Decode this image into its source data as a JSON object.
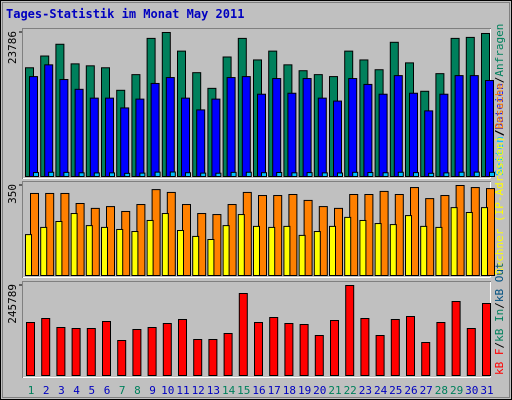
{
  "chart_data": [
    {
      "type": "bar",
      "title": "Tages-Statistik im Monat May 2011",
      "legend_separator": "/",
      "ylim": [
        0,
        23786
      ],
      "yticks": [
        23786
      ],
      "series": [
        {
          "name": "Anfragen",
          "color": "#00805c",
          "values": [
            17960,
            19901,
            21843,
            18607,
            18283,
            17960,
            14238,
            16827,
            22814,
            23786,
            20710,
            17151,
            14562,
            19740,
            22814,
            19254,
            20710,
            18445,
            17474,
            16827,
            16504,
            20710,
            19254,
            17636,
            22167,
            18769,
            14077,
            16989,
            22814,
            22976,
            23624
          ]
        },
        {
          "name": "Dateien",
          "color": "#0000ff",
          "values": [
            16504,
            18445,
            16018,
            14400,
            12944,
            12944,
            11326,
            12782,
            15371,
            16342,
            12944,
            11002,
            12782,
            16342,
            16504,
            13591,
            16180,
            13753,
            16180,
            12944,
            12459,
            16180,
            15209,
            13591,
            16665,
            13753,
            10841,
            13591,
            16665,
            16665,
            15856
          ]
        },
        {
          "name": "Seiten",
          "color": "#00c0ff",
          "values": [
            650,
            700,
            680,
            610,
            590,
            600,
            520,
            560,
            720,
            740,
            620,
            560,
            540,
            680,
            700,
            630,
            660,
            610,
            640,
            600,
            580,
            690,
            650,
            620,
            700,
            640,
            530,
            600,
            710,
            720,
            690
          ]
        }
      ]
    },
    {
      "type": "bar",
      "ylim": [
        0,
        350
      ],
      "yticks": [
        350
      ],
      "series": [
        {
          "name": "Besuche",
          "color": "#ff8000",
          "values": [
            319,
            319,
            319,
            280,
            261,
            268,
            249,
            276,
            334,
            323,
            276,
            241,
            237,
            276,
            323,
            311,
            311,
            315,
            292,
            268,
            261,
            315,
            315,
            327,
            315,
            342,
            299,
            311,
            350,
            342,
            338
          ]
        },
        {
          "name": "Rechner (IP-Adressen)",
          "color": "#ffff00",
          "values": [
            159,
            187,
            210,
            241,
            194,
            187,
            179,
            171,
            214,
            241,
            175,
            152,
            140,
            194,
            237,
            191,
            187,
            191,
            156,
            171,
            191,
            226,
            214,
            202,
            198,
            233,
            191,
            187,
            264,
            245,
            264
          ]
        }
      ]
    },
    {
      "type": "bar",
      "ylim": [
        0,
        245789
      ],
      "yticks": [
        245789
      ],
      "categories": [
        "1",
        "2",
        "3",
        "4",
        "5",
        "6",
        "7",
        "8",
        "9",
        "10",
        "11",
        "12",
        "13",
        "14",
        "15",
        "16",
        "17",
        "18",
        "19",
        "20",
        "21",
        "22",
        "23",
        "24",
        "25",
        "26",
        "27",
        "28",
        "29",
        "30",
        "31"
      ],
      "category_colors": [
        "#00805c",
        "#0000c0",
        "#0000c0",
        "#0000c0",
        "#0000c0",
        "#0000c0",
        "#00805c",
        "#00805c",
        "#0000c0",
        "#0000c0",
        "#0000c0",
        "#0000c0",
        "#0000c0",
        "#00805c",
        "#00805c",
        "#0000c0",
        "#0000c0",
        "#0000c0",
        "#0000c0",
        "#0000c0",
        "#00805c",
        "#00805c",
        "#0000c0",
        "#0000c0",
        "#0000c0",
        "#0000c0",
        "#0000c0",
        "#00805c",
        "#00805c",
        "#0000c0",
        "#0000c0"
      ],
      "series": [
        {
          "name": "kB F",
          "color": "#ff0000",
          "values": [
            144743,
            155667,
            131088,
            128357,
            128357,
            147474,
            95585,
            125626,
            131088,
            142012,
            152936,
            98316,
            98316,
            114702,
            223942,
            144743,
            158398,
            142012,
            139281,
            109240,
            150205,
            245789,
            155667,
            109240,
            152936,
            161129,
            90123,
            144743,
            202094,
            128357,
            196632
          ]
        }
      ],
      "extra_legend": [
        {
          "label": "kB In",
          "color": "#00805c"
        },
        {
          "label": "kB Out",
          "color": "#005080"
        }
      ]
    }
  ]
}
